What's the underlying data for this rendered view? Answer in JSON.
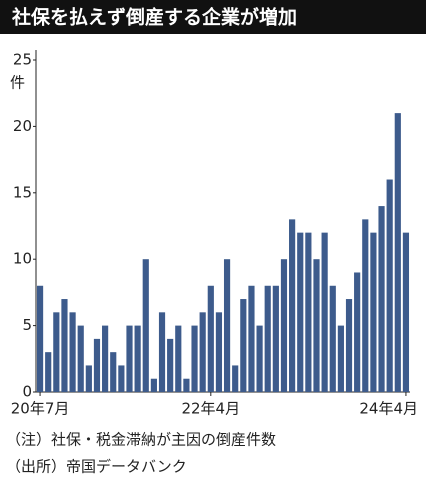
{
  "chart_data": {
    "type": "bar",
    "title": "社保を払えず倒産する企業が増加",
    "y_unit": "件",
    "categories": [
      "20年7月",
      null,
      null,
      null,
      null,
      null,
      null,
      null,
      null,
      null,
      null,
      null,
      null,
      null,
      null,
      null,
      null,
      null,
      null,
      null,
      null,
      "22年4月",
      null,
      null,
      null,
      null,
      null,
      null,
      null,
      null,
      null,
      null,
      null,
      null,
      null,
      null,
      null,
      null,
      null,
      null,
      null,
      null,
      null,
      null,
      null,
      "24年4月"
    ],
    "values": [
      8,
      3,
      6,
      7,
      6,
      5,
      2,
      4,
      5,
      3,
      2,
      5,
      5,
      10,
      1,
      6,
      4,
      5,
      1,
      5,
      6,
      8,
      6,
      10,
      2,
      7,
      8,
      5,
      8,
      8,
      10,
      13,
      12,
      12,
      10,
      12,
      8,
      5,
      7,
      9,
      13,
      12,
      14,
      16,
      21,
      12
    ],
    "color": "#3d5b8c",
    "ylim": [
      0,
      25
    ],
    "yticks": [
      0,
      5,
      10,
      15,
      20,
      25
    ],
    "grid": false,
    "notes": [
      "（注）社保・税金滞納が主因の倒産件数",
      "（出所）帝国データバンク"
    ]
  }
}
